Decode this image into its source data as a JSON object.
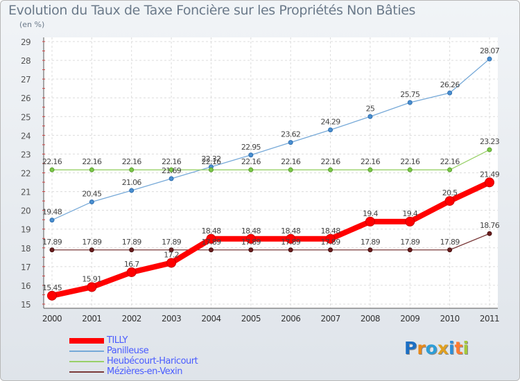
{
  "header": {
    "title": "Evolution du Taux de Taxe Foncière sur les Propriétés Non Bâties",
    "unit": "(en %)"
  },
  "logo": {
    "text": "Proxiti",
    "letters": [
      "P",
      "r",
      "o",
      "x",
      "i",
      "t",
      "i"
    ],
    "colors": [
      "#1c6fc4",
      "#e8891a",
      "#2c9ed8",
      "#e0a020",
      "#2c8ed8",
      "#ff7a2f",
      "#a5c83a"
    ]
  },
  "chart_data": {
    "type": "line",
    "title": "Evolution du Taux de Taxe Foncière sur les Propriétés Non Bâties",
    "ylabel": "(en %)",
    "xlabel": "",
    "x": [
      "2000",
      "2001",
      "2002",
      "2003",
      "2004",
      "2005",
      "2006",
      "2007",
      "2008",
      "2009",
      "2010",
      "2011"
    ],
    "ylim": [
      15,
      29
    ],
    "yticks": [
      "15",
      "16",
      "17",
      "18",
      "19",
      "20",
      "21",
      "22",
      "23",
      "24",
      "25",
      "26",
      "27",
      "28",
      "29"
    ],
    "grid": true,
    "legend_position": "bottom-left",
    "series": [
      {
        "name": "TILLY",
        "color": "#ff0000",
        "values": [
          15.45,
          15.91,
          16.7,
          17.2,
          18.48,
          18.48,
          18.48,
          18.48,
          19.4,
          19.4,
          20.5,
          21.49
        ],
        "labels": [
          "15.45",
          "15.91",
          "16.7",
          "17.2",
          "18.48",
          "18.48",
          "18.48",
          "18.48",
          "19.4",
          "19.4",
          "20.5",
          "21.49"
        ]
      },
      {
        "name": "Panilleuse",
        "color": "#76a9d8",
        "values": [
          19.48,
          20.45,
          21.06,
          21.69,
          22.32,
          22.95,
          23.62,
          24.29,
          25,
          25.75,
          26.26,
          28.07
        ],
        "labels": [
          "19.48",
          "20.45",
          "21.06",
          "21.69",
          "22.32",
          "22.95",
          "23.62",
          "24.29",
          "25",
          "25.75",
          "26.26",
          "28.07"
        ]
      },
      {
        "name": "Heubécourt-Haricourt",
        "color": "#98d068",
        "values": [
          22.16,
          22.16,
          22.16,
          22.16,
          22.16,
          22.16,
          22.16,
          22.16,
          22.16,
          22.16,
          22.16,
          23.23
        ],
        "labels": [
          "22.16",
          "22.16",
          "22.16",
          "22.16",
          "22.16",
          "22.16",
          "22.16",
          "22.16",
          "22.16",
          "22.16",
          "22.16",
          "23.23"
        ]
      },
      {
        "name": "Mézières-en-Vexin",
        "color": "#7a3a3a",
        "values": [
          17.89,
          17.89,
          17.89,
          17.89,
          17.89,
          17.89,
          17.89,
          17.89,
          17.89,
          17.89,
          17.89,
          18.76
        ],
        "labels": [
          "17.89",
          "17.89",
          "17.89",
          "17.89",
          "17.89",
          "17.89",
          "17.89",
          "17.89",
          "17.89",
          "17.89",
          "17.89",
          "18.76"
        ]
      }
    ]
  }
}
